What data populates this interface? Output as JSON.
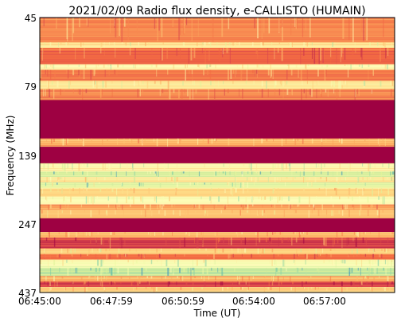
{
  "chart_data": {
    "type": "heatmap",
    "title": "2021/02/09  Radio flux density, e-CALLISTO (HUMAIN)",
    "xlabel": "Time (UT)",
    "ylabel": "Frequency (MHz)",
    "x_tick_labels": [
      "06:45:00",
      "06:47:59",
      "06:50:59",
      "06:54:00",
      "06:57:00"
    ],
    "y_tick_labels": [
      "45",
      "79",
      "139",
      "247",
      "437"
    ],
    "colormap": "Spectral",
    "grid": false,
    "bands": [
      {
        "from": 0.0,
        "to": 0.09,
        "level": 0.3
      },
      {
        "from": 0.09,
        "to": 0.11,
        "level": 0.55
      },
      {
        "from": 0.11,
        "to": 0.17,
        "level": 0.25
      },
      {
        "from": 0.17,
        "to": 0.19,
        "level": 0.6
      },
      {
        "from": 0.19,
        "to": 0.23,
        "level": 0.28
      },
      {
        "from": 0.23,
        "to": 0.26,
        "level": 0.55
      },
      {
        "from": 0.26,
        "to": 0.3,
        "level": 0.3
      },
      {
        "from": 0.3,
        "to": 0.44,
        "level": 0.0
      },
      {
        "from": 0.44,
        "to": 0.47,
        "level": 0.4
      },
      {
        "from": 0.47,
        "to": 0.53,
        "level": 0.0
      },
      {
        "from": 0.53,
        "to": 0.56,
        "level": 0.6
      },
      {
        "from": 0.56,
        "to": 0.58,
        "level": 0.78
      },
      {
        "from": 0.58,
        "to": 0.6,
        "level": 0.55
      },
      {
        "from": 0.6,
        "to": 0.62,
        "level": 0.7
      },
      {
        "from": 0.62,
        "to": 0.65,
        "level": 0.5
      },
      {
        "from": 0.65,
        "to": 0.68,
        "level": 0.62
      },
      {
        "from": 0.68,
        "to": 0.7,
        "level": 0.35
      },
      {
        "from": 0.7,
        "to": 0.73,
        "level": 0.45
      },
      {
        "from": 0.73,
        "to": 0.78,
        "level": 0.0
      },
      {
        "from": 0.78,
        "to": 0.8,
        "level": 0.4
      },
      {
        "from": 0.8,
        "to": 0.84,
        "level": 0.15
      },
      {
        "from": 0.84,
        "to": 0.86,
        "level": 0.5
      },
      {
        "from": 0.86,
        "to": 0.88,
        "level": 0.25
      },
      {
        "from": 0.88,
        "to": 0.91,
        "level": 0.65
      },
      {
        "from": 0.91,
        "to": 0.94,
        "level": 0.8
      },
      {
        "from": 0.94,
        "to": 0.96,
        "level": 0.4
      },
      {
        "from": 0.96,
        "to": 0.98,
        "level": 0.15
      },
      {
        "from": 0.98,
        "to": 1.0,
        "level": 0.45
      }
    ]
  }
}
